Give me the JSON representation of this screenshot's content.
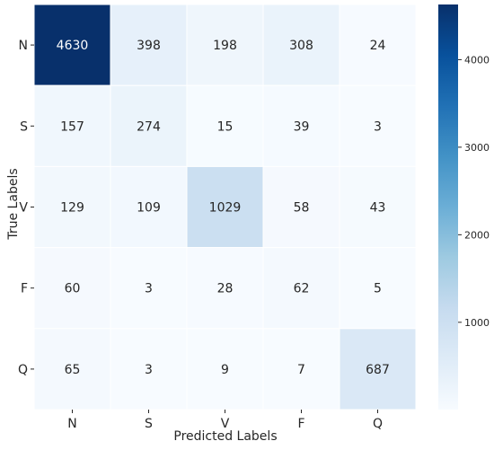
{
  "chart_data": {
    "type": "heatmap",
    "title": "",
    "xlabel": "Predicted Labels",
    "ylabel": "True Labels",
    "x_categories": [
      "N",
      "S",
      "V",
      "F",
      "Q"
    ],
    "y_categories": [
      "N",
      "S",
      "V",
      "F",
      "Q"
    ],
    "values": [
      [
        4630,
        398,
        198,
        308,
        24
      ],
      [
        157,
        274,
        15,
        39,
        3
      ],
      [
        129,
        109,
        1029,
        58,
        43
      ],
      [
        60,
        3,
        28,
        62,
        5
      ],
      [
        65,
        3,
        9,
        7,
        687
      ]
    ],
    "colorscale": "Blues",
    "color_low": "#f7fbff",
    "color_high": "#08306b",
    "vmin": 3,
    "vmax": 4630,
    "colorbar_ticks": [
      1000,
      2000,
      3000,
      4000
    ],
    "colorbar_tick_labels": [
      "1000",
      "2000",
      "3000",
      "4000"
    ],
    "annotation_text_dark": "#262626",
    "annotation_text_light": "#ffffff"
  }
}
